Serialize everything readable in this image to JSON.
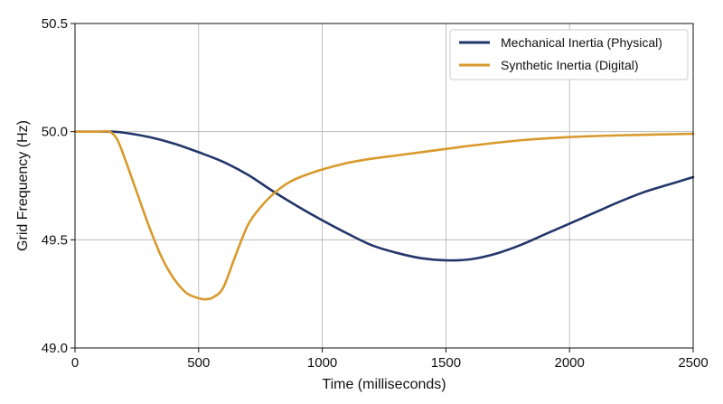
{
  "chart_data": {
    "type": "line",
    "title": "",
    "xlabel": "Time (milliseconds)",
    "ylabel": "Grid Frequency (Hz)",
    "xlim": [
      0,
      2500
    ],
    "ylim": [
      49.0,
      50.5
    ],
    "xticks": [
      0,
      500,
      1000,
      1500,
      2000,
      2500
    ],
    "yticks": [
      49.0,
      49.5,
      50.0,
      50.5
    ],
    "xtick_labels": [
      "0",
      "500",
      "1000",
      "1500",
      "2000",
      "2500"
    ],
    "ytick_labels": [
      "49.0",
      "49.5",
      "50.0",
      "50.5"
    ],
    "grid": true,
    "legend_position": "top-right",
    "series": [
      {
        "name": "Mechanical Inertia (Physical)",
        "color": "#23366a",
        "x": [
          0,
          100,
          150,
          200,
          300,
          400,
          500,
          600,
          700,
          800,
          900,
          1000,
          1100,
          1200,
          1300,
          1400,
          1500,
          1600,
          1700,
          1800,
          1900,
          2000,
          2100,
          2200,
          2300,
          2400,
          2500
        ],
        "y": [
          50.0,
          50.0,
          50.0,
          49.995,
          49.975,
          49.945,
          49.905,
          49.86,
          49.8,
          49.725,
          49.655,
          49.59,
          49.53,
          49.475,
          49.44,
          49.415,
          49.405,
          49.41,
          49.435,
          49.475,
          49.525,
          49.575,
          49.625,
          49.675,
          49.72,
          49.755,
          49.79
        ]
      },
      {
        "name": "Synthetic Inertia (Digital)",
        "color": "#d89a2c",
        "x": [
          0,
          100,
          140,
          170,
          200,
          250,
          300,
          350,
          400,
          450,
          500,
          530,
          560,
          600,
          650,
          700,
          750,
          800,
          850,
          900,
          1000,
          1100,
          1200,
          1300,
          1400,
          1500,
          1600,
          1800,
          2000,
          2200,
          2500
        ],
        "y": [
          50.0,
          50.0,
          50.0,
          49.965,
          49.88,
          49.72,
          49.56,
          49.42,
          49.32,
          49.255,
          49.23,
          49.225,
          49.235,
          49.28,
          49.43,
          49.57,
          49.65,
          49.71,
          49.755,
          49.785,
          49.825,
          49.855,
          49.875,
          49.89,
          49.905,
          49.92,
          49.935,
          49.96,
          49.975,
          49.983,
          49.99
        ]
      }
    ]
  }
}
